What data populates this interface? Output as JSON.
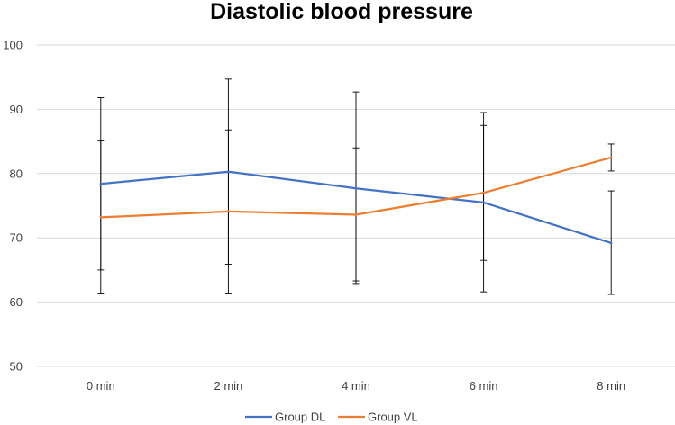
{
  "chart_data": {
    "type": "line",
    "title": "Diastolic blood pressure",
    "xlabel": "",
    "ylabel": "",
    "categories": [
      "0 min",
      "2 min",
      "4 min",
      "6 min",
      "8 min"
    ],
    "ylim": [
      50,
      100
    ],
    "yticks": [
      50,
      60,
      70,
      80,
      90,
      100
    ],
    "grid": true,
    "legend_position": "bottom",
    "series": [
      {
        "name": "Group DL",
        "color": "#4472C4",
        "values": [
          78.4,
          80.3,
          77.7,
          75.5,
          69.2
        ],
        "error_upper": [
          91.8,
          94.7,
          92.7,
          87.5,
          77.3
        ],
        "error_lower": [
          65.0,
          65.9,
          63.3,
          61.6,
          61.2
        ]
      },
      {
        "name": "Group VL",
        "color": "#ED7D31",
        "values": [
          73.2,
          74.1,
          73.6,
          77.0,
          82.5
        ],
        "error_upper": [
          85.1,
          86.8,
          84.0,
          89.5,
          84.6
        ],
        "error_lower": [
          61.4,
          61.4,
          62.9,
          66.5,
          80.4
        ]
      }
    ]
  }
}
